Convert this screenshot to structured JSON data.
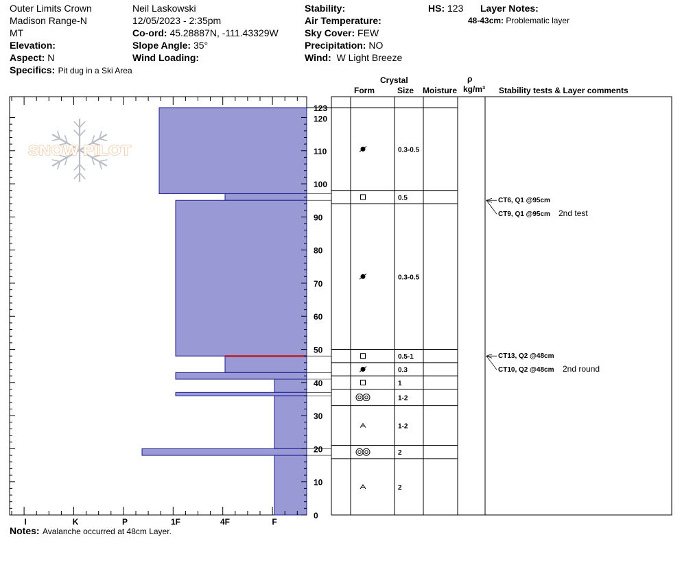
{
  "header": {
    "location": "Outer Limits Crown",
    "range": "Madison Range-N",
    "state": "MT",
    "elevation_label": "Elevation:",
    "aspect_label": "Aspect:",
    "aspect_value": "N",
    "specifics_label": "Specifics:",
    "specifics_value": "Pit dug in a Ski Area",
    "observer": "Neil Laskowski",
    "datetime": "12/05/2023 - 2:35pm",
    "coord_label": "Co-ord:",
    "coord_value": "45.28887N, -111.43329W",
    "slope_label": "Slope Angle:",
    "slope_value": "35°",
    "wind_loading_label": "Wind Loading:",
    "stability_label": "Stability:",
    "air_temp_label": "Air Temperature:",
    "sky_label": "Sky Cover:",
    "sky_value": "FEW",
    "precip_label": "Precipitation:",
    "precip_value": "NO",
    "wind_label": "Wind:",
    "wind_value": "W Light Breeze",
    "hs_label": "HS:",
    "hs_value": "123",
    "layer_notes_label": "Layer Notes:",
    "layer_note_range": "48-43cm:",
    "layer_note_text": "Problematic layer"
  },
  "columns": {
    "crystal": "Crystal",
    "form": "Form",
    "size": "Size",
    "moisture": "Moisture",
    "rho": "ρ",
    "density_unit": "kg/m³",
    "stability_comments": "Stability tests & Layer comments"
  },
  "logo_text": "SNOW PILOT",
  "notes_label": "Notes:",
  "notes_value": "Avalanche occurred at 48cm Layer.",
  "colors": {
    "hardness_fill": "#9999d6",
    "hardness_stroke": "#1a1a8c",
    "failure_line": "#cc0000",
    "logo": "#f0c8a8"
  },
  "chart_data": {
    "type": "snow-profile",
    "height_axis": {
      "min": 0,
      "max": 123,
      "ticks": [
        0,
        10,
        20,
        30,
        40,
        50,
        60,
        70,
        80,
        90,
        100,
        110,
        120,
        123
      ]
    },
    "hardness_axis": {
      "labels": [
        "I",
        "K",
        "P",
        "1F",
        "4F",
        "F"
      ]
    },
    "hardness_layers": [
      {
        "top": 123,
        "bottom": 97,
        "hardness": "1F+"
      },
      {
        "top": 97,
        "bottom": 95,
        "hardness": "4F"
      },
      {
        "top": 95,
        "bottom": 48,
        "hardness": "1F"
      },
      {
        "top": 48,
        "bottom": 43,
        "hardness": "4F"
      },
      {
        "top": 43,
        "bottom": 41,
        "hardness": "1F"
      },
      {
        "top": 41,
        "bottom": 37,
        "hardness": "F"
      },
      {
        "top": 37,
        "bottom": 36,
        "hardness": "1F"
      },
      {
        "top": 36,
        "bottom": 20,
        "hardness": "F"
      },
      {
        "top": 20,
        "bottom": 18,
        "hardness": "P+"
      },
      {
        "top": 18,
        "bottom": 0,
        "hardness": "F"
      }
    ],
    "failure_height": 48,
    "crystal_layers": [
      {
        "top": 123,
        "bottom": 98,
        "form": "rounded-melt",
        "size": "0.3-0.5"
      },
      {
        "top": 98,
        "bottom": 94,
        "form": "faceted",
        "size": "0.5"
      },
      {
        "top": 94,
        "bottom": 50,
        "form": "rounded-melt",
        "size": "0.3-0.5"
      },
      {
        "top": 50,
        "bottom": 46,
        "form": "faceted",
        "size": "0.5-1"
      },
      {
        "top": 46,
        "bottom": 42,
        "form": "rounded-melt",
        "size": "0.3"
      },
      {
        "top": 42,
        "bottom": 38,
        "form": "faceted",
        "size": "1"
      },
      {
        "top": 38,
        "bottom": 33,
        "form": "melt-clusters",
        "size": "1-2"
      },
      {
        "top": 33,
        "bottom": 21,
        "form": "depth-hoar",
        "size": "1-2"
      },
      {
        "top": 21,
        "bottom": 17,
        "form": "melt-clusters",
        "size": "2"
      },
      {
        "top": 17,
        "bottom": 0,
        "form": "depth-hoar",
        "size": "2"
      }
    ],
    "stability_tests": [
      {
        "height": 95,
        "lines": [
          {
            "text": "CT6, Q1 @95cm",
            "comment": ""
          },
          {
            "text": "CT9, Q1 @95cm",
            "comment": "2nd test"
          }
        ]
      },
      {
        "height": 48,
        "lines": [
          {
            "text": "CT13, Q2 @48cm",
            "comment": ""
          },
          {
            "text": "CT10, Q2 @48cm",
            "comment": "2nd round"
          }
        ]
      }
    ]
  }
}
